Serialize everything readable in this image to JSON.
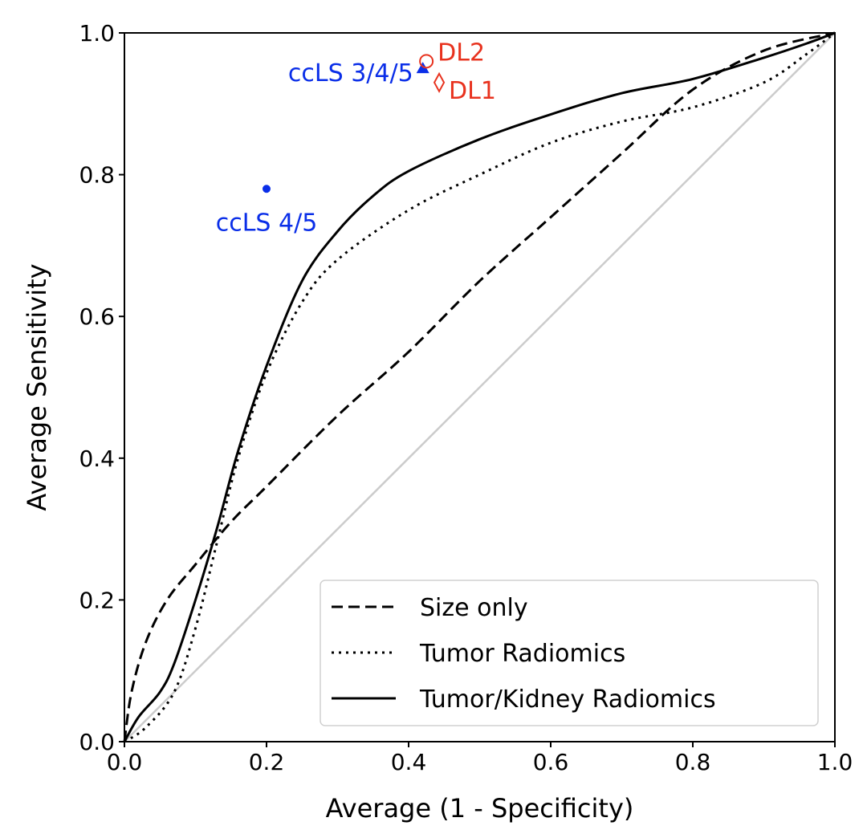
{
  "chart_data": {
    "type": "line",
    "title": "",
    "xlabel": "Average (1 - Specificity)",
    "ylabel": "Average Sensitivity",
    "xlim": [
      0,
      1
    ],
    "ylim": [
      0,
      1
    ],
    "xticks": [
      "0.0",
      "0.2",
      "0.4",
      "0.6",
      "0.8",
      "1.0"
    ],
    "yticks": [
      "0.0",
      "0.2",
      "0.4",
      "0.6",
      "0.8",
      "1.0"
    ],
    "grid": false,
    "legend_position": "lower-right",
    "chance_line": {
      "x": [
        0,
        1
      ],
      "y": [
        0,
        1
      ],
      "color": "#cccccc"
    },
    "series": [
      {
        "name": "Size only",
        "style": "dashed",
        "color": "#000000",
        "x": [
          0,
          0.01,
          0.03,
          0.06,
          0.1,
          0.15,
          0.2,
          0.3,
          0.4,
          0.5,
          0.6,
          0.7,
          0.8,
          0.9,
          1.0
        ],
        "y": [
          0,
          0.07,
          0.14,
          0.2,
          0.25,
          0.31,
          0.36,
          0.46,
          0.55,
          0.65,
          0.74,
          0.83,
          0.92,
          0.975,
          1.0
        ]
      },
      {
        "name": "Tumor Radiomics",
        "style": "dotted",
        "color": "#000000",
        "x": [
          0,
          0.03,
          0.07,
          0.1,
          0.13,
          0.16,
          0.2,
          0.25,
          0.3,
          0.4,
          0.5,
          0.6,
          0.7,
          0.8,
          0.9,
          0.96,
          1.0
        ],
        "y": [
          0,
          0.02,
          0.07,
          0.16,
          0.28,
          0.4,
          0.52,
          0.62,
          0.68,
          0.75,
          0.8,
          0.845,
          0.875,
          0.895,
          0.93,
          0.97,
          1.0
        ]
      },
      {
        "name": "Tumor/Kidney Radiomics",
        "style": "solid",
        "color": "#000000",
        "x": [
          0,
          0.02,
          0.05,
          0.07,
          0.1,
          0.13,
          0.16,
          0.2,
          0.25,
          0.3,
          0.35,
          0.4,
          0.5,
          0.6,
          0.7,
          0.8,
          0.9,
          0.96,
          1.0
        ],
        "y": [
          0,
          0.035,
          0.07,
          0.11,
          0.2,
          0.3,
          0.41,
          0.53,
          0.65,
          0.72,
          0.77,
          0.805,
          0.85,
          0.885,
          0.915,
          0.935,
          0.965,
          0.985,
          1.0
        ]
      }
    ],
    "points": [
      {
        "label": "ccLS 4/5",
        "x": 0.2,
        "y": 0.78,
        "marker": "dot",
        "color": "#0a2ee8",
        "label_pos": "below"
      },
      {
        "label": "ccLS 3/4/5",
        "x": 0.42,
        "y": 0.95,
        "marker": "triangle",
        "color": "#0a2ee8",
        "label_pos": "left"
      },
      {
        "label": "DL2",
        "x": 0.425,
        "y": 0.96,
        "marker": "circle-open",
        "color": "#e8321e",
        "label_pos": "right"
      },
      {
        "label": "DL1",
        "x": 0.443,
        "y": 0.93,
        "marker": "diamond-open",
        "color": "#e8321e",
        "label_pos": "right"
      }
    ]
  }
}
